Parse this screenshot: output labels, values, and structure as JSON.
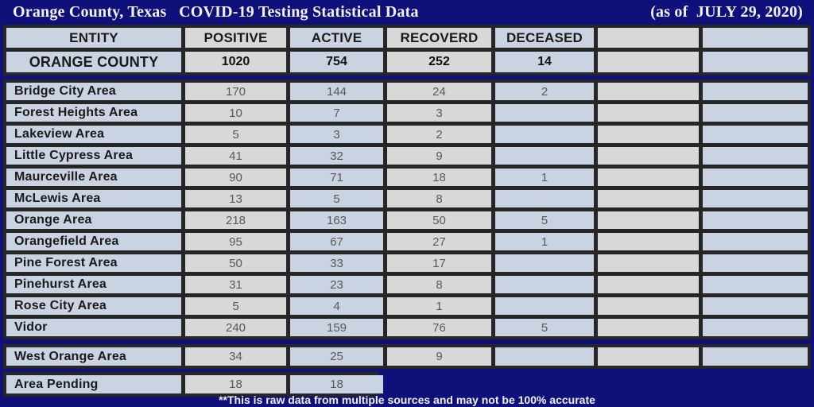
{
  "title_bar": {
    "left": "Orange County, Texas   COVID-19 Testing Statistical Data",
    "right": "(as of  JULY 29, 2020)"
  },
  "table": {
    "headers": [
      "ENTITY",
      "POSITIVE",
      "ACTIVE",
      "RECOVERD",
      "DECEASED",
      "",
      ""
    ],
    "county_row": [
      "ORANGE COUNTY",
      "1020",
      "754",
      "252",
      "14",
      "",
      ""
    ],
    "rows": [
      [
        "Bridge City Area",
        "170",
        "144",
        "24",
        "2",
        "",
        ""
      ],
      [
        "Forest Heights Area",
        "10",
        "7",
        "3",
        "",
        "",
        ""
      ],
      [
        "Lakeview Area",
        "5",
        "3",
        "2",
        "",
        "",
        ""
      ],
      [
        "Little Cypress Area",
        "41",
        "32",
        "9",
        "",
        "",
        ""
      ],
      [
        "Maurceville Area",
        "90",
        "71",
        "18",
        "1",
        "",
        ""
      ],
      [
        "McLewis Area",
        "13",
        "5",
        "8",
        "",
        "",
        ""
      ],
      [
        "Orange Area",
        "218",
        "163",
        "50",
        "5",
        "",
        ""
      ],
      [
        "Orangefield Area",
        "95",
        "67",
        "27",
        "1",
        "",
        ""
      ],
      [
        "Pine Forest Area",
        "50",
        "33",
        "17",
        "",
        "",
        ""
      ],
      [
        "Pinehurst Area",
        "31",
        "23",
        "8",
        "",
        "",
        ""
      ],
      [
        "Rose City Area",
        "5",
        "4",
        "1",
        "",
        "",
        ""
      ],
      [
        "Vidor",
        "240",
        "159",
        "76",
        "5",
        "",
        ""
      ]
    ],
    "west_orange_row": [
      "West Orange Area",
      "34",
      "25",
      "9",
      "",
      "",
      ""
    ],
    "pending_row": [
      "Area Pending",
      "18",
      "18"
    ]
  },
  "footer": {
    "note": "**This is raw data from multiple sources and may not be 100% accurate"
  },
  "colors": {
    "background_navy": "#10107a",
    "border_black": "#262626",
    "cell_gray": "#d8d8d8",
    "cell_blue": "#c9d3e1",
    "text_dark": "#1a1a1a",
    "text_number_gray": "#595959",
    "text_white": "#f2f2f5"
  }
}
